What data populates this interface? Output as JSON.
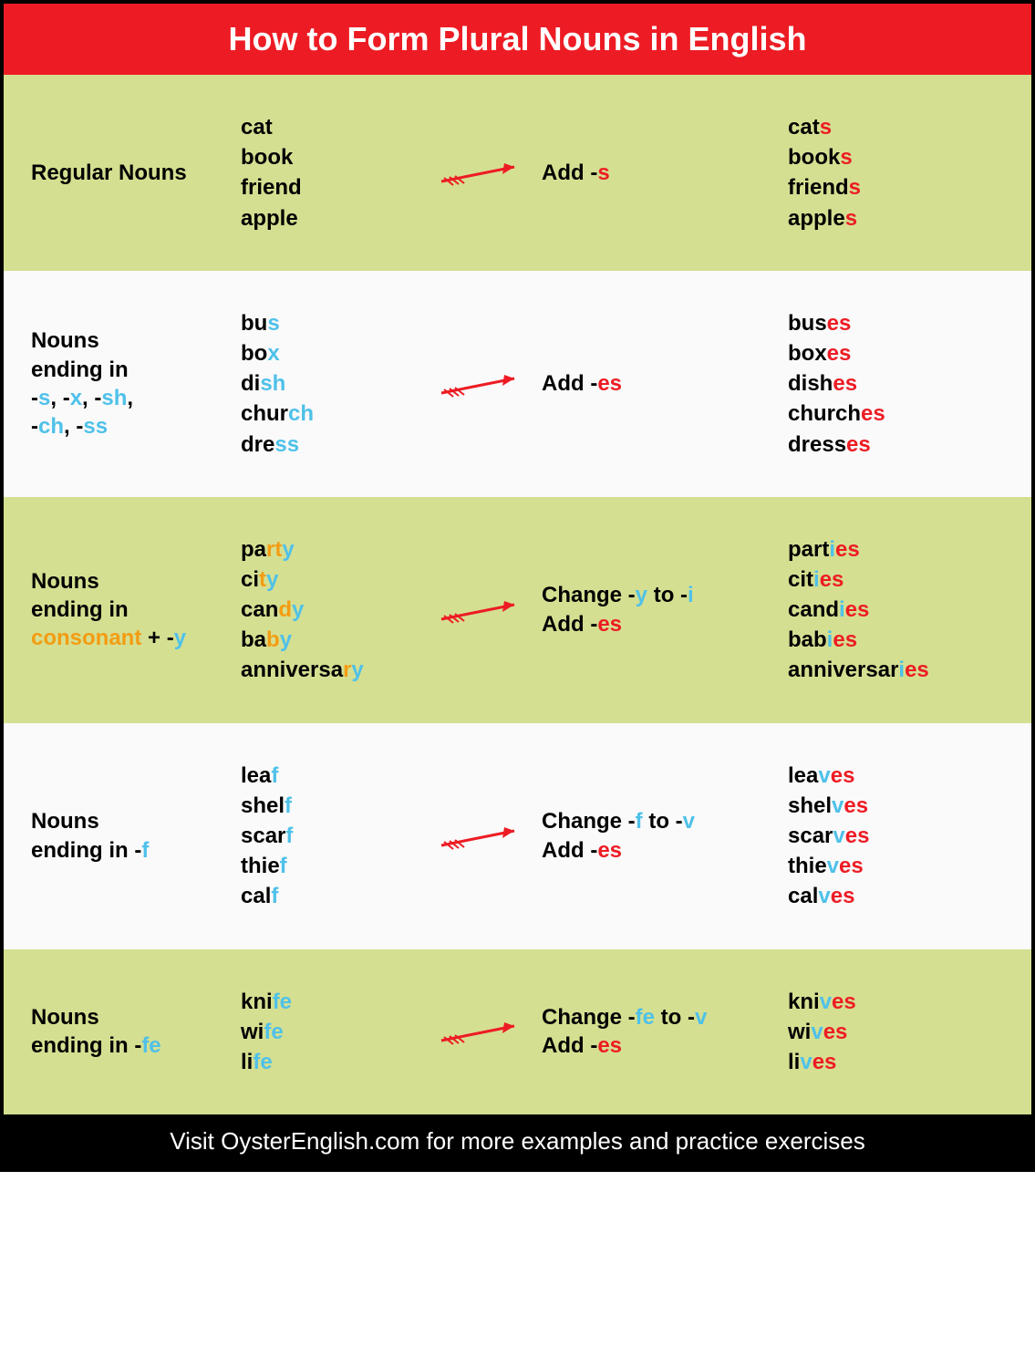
{
  "title": "How to Form Plural Nouns in English",
  "footer": "Visit OysterEnglish.com for more examples and practice exercises",
  "colors": {
    "header_bg": "#ed1c24",
    "header_text": "#ffffff",
    "row_odd_bg": "#d5df91",
    "row_even_bg": "#fafafa",
    "footer_bg": "#000000",
    "footer_text": "#ffffff",
    "highlight_red": "#ed1c24",
    "highlight_blue": "#4fc1e9",
    "highlight_orange": "#f39c12",
    "arrow_color": "#ed1c24"
  },
  "rows": [
    {
      "category": [
        {
          "t": "Regular Nouns",
          "c": "black"
        }
      ],
      "examples": [
        [
          {
            "t": "cat",
            "c": "black"
          }
        ],
        [
          {
            "t": "book",
            "c": "black"
          }
        ],
        [
          {
            "t": "friend",
            "c": "black"
          }
        ],
        [
          {
            "t": "apple",
            "c": "black"
          }
        ]
      ],
      "rule": [
        [
          {
            "t": "Add -",
            "c": "black"
          },
          {
            "t": "s",
            "c": "red"
          }
        ]
      ],
      "results": [
        [
          {
            "t": "cat",
            "c": "black"
          },
          {
            "t": "s",
            "c": "red"
          }
        ],
        [
          {
            "t": "book",
            "c": "black"
          },
          {
            "t": "s",
            "c": "red"
          }
        ],
        [
          {
            "t": "friend",
            "c": "black"
          },
          {
            "t": "s",
            "c": "red"
          }
        ],
        [
          {
            "t": "apple",
            "c": "black"
          },
          {
            "t": "s",
            "c": "red"
          }
        ]
      ]
    },
    {
      "category": [
        {
          "t": "Nouns",
          "c": "black"
        },
        {
          "br": true
        },
        {
          "t": "ending in",
          "c": "black"
        },
        {
          "br": true
        },
        {
          "t": "-",
          "c": "black"
        },
        {
          "t": "s",
          "c": "blue"
        },
        {
          "t": ", -",
          "c": "black"
        },
        {
          "t": "x",
          "c": "blue"
        },
        {
          "t": ", -",
          "c": "black"
        },
        {
          "t": "sh",
          "c": "blue"
        },
        {
          "t": ",",
          "c": "black"
        },
        {
          "br": true
        },
        {
          "t": "-",
          "c": "black"
        },
        {
          "t": "ch",
          "c": "blue"
        },
        {
          "t": ", -",
          "c": "black"
        },
        {
          "t": "ss",
          "c": "blue"
        }
      ],
      "examples": [
        [
          {
            "t": "bu",
            "c": "black"
          },
          {
            "t": "s",
            "c": "blue"
          }
        ],
        [
          {
            "t": "bo",
            "c": "black"
          },
          {
            "t": "x",
            "c": "blue"
          }
        ],
        [
          {
            "t": "di",
            "c": "black"
          },
          {
            "t": "sh",
            "c": "blue"
          }
        ],
        [
          {
            "t": "chur",
            "c": "black"
          },
          {
            "t": "ch",
            "c": "blue"
          }
        ],
        [
          {
            "t": "dre",
            "c": "black"
          },
          {
            "t": "ss",
            "c": "blue"
          }
        ]
      ],
      "rule": [
        [
          {
            "t": "Add -",
            "c": "black"
          },
          {
            "t": "es",
            "c": "red"
          }
        ]
      ],
      "results": [
        [
          {
            "t": "bus",
            "c": "black"
          },
          {
            "t": "es",
            "c": "red"
          }
        ],
        [
          {
            "t": "box",
            "c": "black"
          },
          {
            "t": "es",
            "c": "red"
          }
        ],
        [
          {
            "t": "dish",
            "c": "black"
          },
          {
            "t": "es",
            "c": "red"
          }
        ],
        [
          {
            "t": "church",
            "c": "black"
          },
          {
            "t": "es",
            "c": "red"
          }
        ],
        [
          {
            "t": "dress",
            "c": "black"
          },
          {
            "t": "es",
            "c": "red"
          }
        ]
      ]
    },
    {
      "category": [
        {
          "t": "Nouns",
          "c": "black"
        },
        {
          "br": true
        },
        {
          "t": "ending in",
          "c": "black"
        },
        {
          "br": true
        },
        {
          "t": "consonant",
          "c": "orange"
        },
        {
          "t": " + -",
          "c": "black"
        },
        {
          "t": "y",
          "c": "blue"
        }
      ],
      "examples": [
        [
          {
            "t": "pa",
            "c": "black"
          },
          {
            "t": "r",
            "c": "orange"
          },
          {
            "t": "t",
            "c": "orange"
          },
          {
            "t": "y",
            "c": "blue"
          }
        ],
        [
          {
            "t": "ci",
            "c": "black"
          },
          {
            "t": "t",
            "c": "orange"
          },
          {
            "t": "y",
            "c": "blue"
          }
        ],
        [
          {
            "t": "can",
            "c": "black"
          },
          {
            "t": "d",
            "c": "orange"
          },
          {
            "t": "y",
            "c": "blue"
          }
        ],
        [
          {
            "t": "ba",
            "c": "black"
          },
          {
            "t": "b",
            "c": "orange"
          },
          {
            "t": "y",
            "c": "blue"
          }
        ],
        [
          {
            "t": "anniversa",
            "c": "black"
          },
          {
            "t": "r",
            "c": "orange"
          },
          {
            "t": "y",
            "c": "blue"
          }
        ]
      ],
      "rule": [
        [
          {
            "t": "Change -",
            "c": "black"
          },
          {
            "t": "y",
            "c": "blue"
          },
          {
            "t": " to -",
            "c": "black"
          },
          {
            "t": "i",
            "c": "blue"
          }
        ],
        [
          {
            "t": "Add -",
            "c": "black"
          },
          {
            "t": "es",
            "c": "red"
          }
        ]
      ],
      "results": [
        [
          {
            "t": "part",
            "c": "black"
          },
          {
            "t": "i",
            "c": "blue"
          },
          {
            "t": "es",
            "c": "red"
          }
        ],
        [
          {
            "t": "cit",
            "c": "black"
          },
          {
            "t": "i",
            "c": "blue"
          },
          {
            "t": "es",
            "c": "red"
          }
        ],
        [
          {
            "t": "cand",
            "c": "black"
          },
          {
            "t": "i",
            "c": "blue"
          },
          {
            "t": "es",
            "c": "red"
          }
        ],
        [
          {
            "t": "bab",
            "c": "black"
          },
          {
            "t": "i",
            "c": "blue"
          },
          {
            "t": "es",
            "c": "red"
          }
        ],
        [
          {
            "t": "anniversar",
            "c": "black"
          },
          {
            "t": "i",
            "c": "blue"
          },
          {
            "t": "es",
            "c": "red"
          }
        ]
      ]
    },
    {
      "category": [
        {
          "t": "Nouns",
          "c": "black"
        },
        {
          "br": true
        },
        {
          "t": "ending in -",
          "c": "black"
        },
        {
          "t": "f",
          "c": "blue"
        }
      ],
      "examples": [
        [
          {
            "t": "lea",
            "c": "black"
          },
          {
            "t": "f",
            "c": "blue"
          }
        ],
        [
          {
            "t": "shel",
            "c": "black"
          },
          {
            "t": "f",
            "c": "blue"
          }
        ],
        [
          {
            "t": "scar",
            "c": "black"
          },
          {
            "t": "f",
            "c": "blue"
          }
        ],
        [
          {
            "t": "thie",
            "c": "black"
          },
          {
            "t": "f",
            "c": "blue"
          }
        ],
        [
          {
            "t": "cal",
            "c": "black"
          },
          {
            "t": "f",
            "c": "blue"
          }
        ]
      ],
      "rule": [
        [
          {
            "t": "Change -",
            "c": "black"
          },
          {
            "t": "f",
            "c": "blue"
          },
          {
            "t": " to -",
            "c": "black"
          },
          {
            "t": "v",
            "c": "blue"
          }
        ],
        [
          {
            "t": "Add -",
            "c": "black"
          },
          {
            "t": "es",
            "c": "red"
          }
        ]
      ],
      "results": [
        [
          {
            "t": "lea",
            "c": "black"
          },
          {
            "t": "v",
            "c": "blue"
          },
          {
            "t": "es",
            "c": "red"
          }
        ],
        [
          {
            "t": "shel",
            "c": "black"
          },
          {
            "t": "v",
            "c": "blue"
          },
          {
            "t": "es",
            "c": "red"
          }
        ],
        [
          {
            "t": "scar",
            "c": "black"
          },
          {
            "t": "v",
            "c": "blue"
          },
          {
            "t": "es",
            "c": "red"
          }
        ],
        [
          {
            "t": "thie",
            "c": "black"
          },
          {
            "t": "v",
            "c": "blue"
          },
          {
            "t": "es",
            "c": "red"
          }
        ],
        [
          {
            "t": "cal",
            "c": "black"
          },
          {
            "t": "v",
            "c": "blue"
          },
          {
            "t": "es",
            "c": "red"
          }
        ]
      ]
    },
    {
      "category": [
        {
          "t": "Nouns",
          "c": "black"
        },
        {
          "br": true
        },
        {
          "t": "ending in -",
          "c": "black"
        },
        {
          "t": "fe",
          "c": "blue"
        }
      ],
      "examples": [
        [
          {
            "t": "kni",
            "c": "black"
          },
          {
            "t": "fe",
            "c": "blue"
          }
        ],
        [
          {
            "t": "wi",
            "c": "black"
          },
          {
            "t": "fe",
            "c": "blue"
          }
        ],
        [
          {
            "t": "li",
            "c": "black"
          },
          {
            "t": "fe",
            "c": "blue"
          }
        ]
      ],
      "rule": [
        [
          {
            "t": "Change -",
            "c": "black"
          },
          {
            "t": "fe",
            "c": "blue"
          },
          {
            "t": " to -",
            "c": "black"
          },
          {
            "t": "v",
            "c": "blue"
          }
        ],
        [
          {
            "t": "Add -",
            "c": "black"
          },
          {
            "t": "es",
            "c": "red"
          }
        ]
      ],
      "results": [
        [
          {
            "t": "kni",
            "c": "black"
          },
          {
            "t": "v",
            "c": "blue"
          },
          {
            "t": "es",
            "c": "red"
          }
        ],
        [
          {
            "t": "wi",
            "c": "black"
          },
          {
            "t": "v",
            "c": "blue"
          },
          {
            "t": "es",
            "c": "red"
          }
        ],
        [
          {
            "t": "li",
            "c": "black"
          },
          {
            "t": "v",
            "c": "blue"
          },
          {
            "t": "es",
            "c": "red"
          }
        ]
      ]
    }
  ]
}
